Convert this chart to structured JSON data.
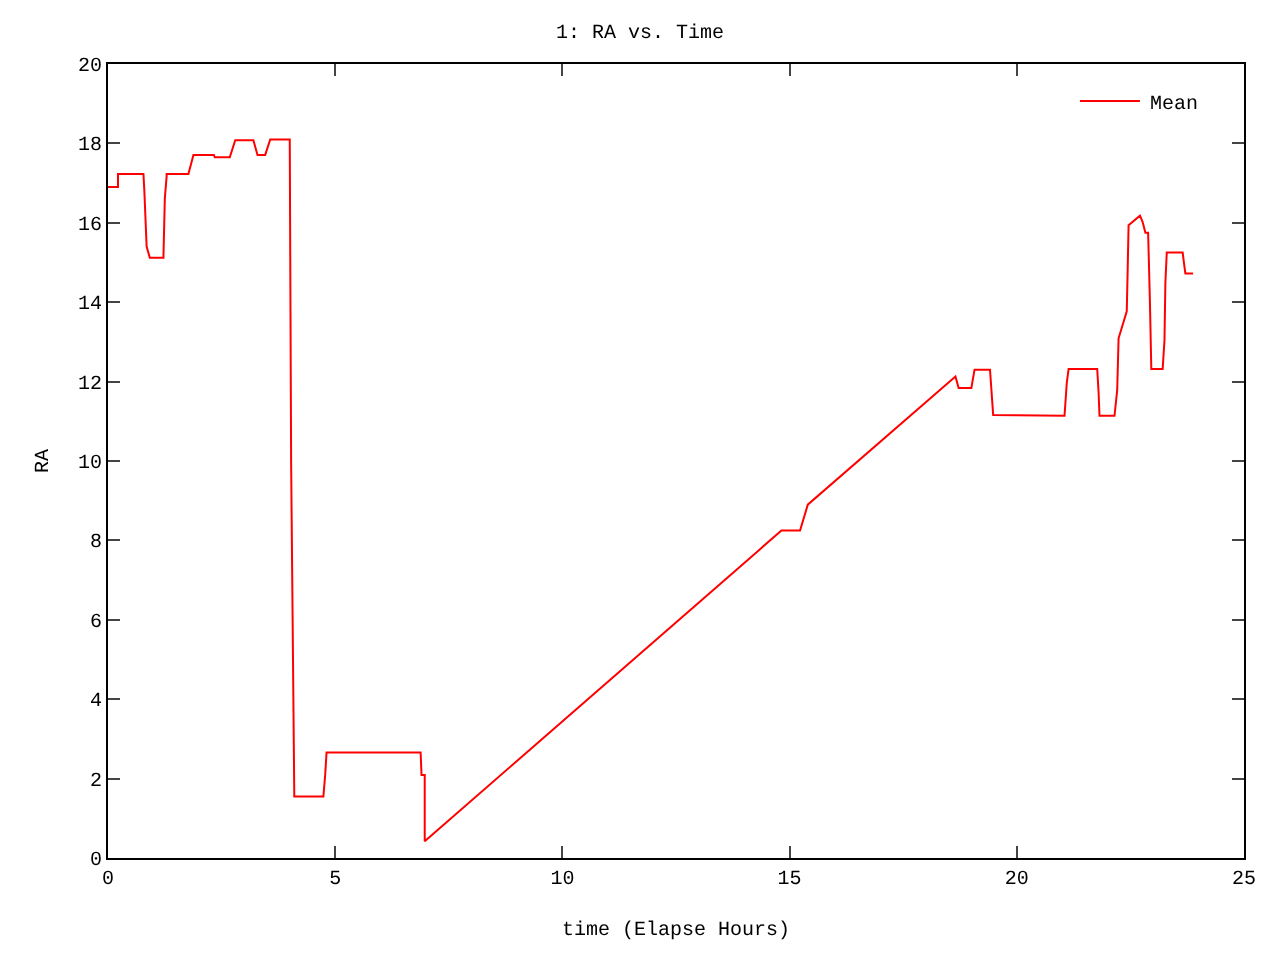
{
  "chart_data": {
    "type": "line",
    "title": "1: RA vs. Time",
    "xlabel": "time (Elapse Hours)",
    "ylabel": "RA",
    "xlim": [
      0,
      25
    ],
    "xticks": [
      0,
      5,
      10,
      15,
      20,
      25
    ],
    "ylim": [
      0,
      20
    ],
    "yticks": [
      0,
      2,
      4,
      6,
      8,
      10,
      12,
      14,
      16,
      18,
      20
    ],
    "legend": "top right",
    "marker": "none",
    "line_style": "solid",
    "series": [
      {
        "name": "Mean",
        "color": "#ff0000",
        "x": [
          0,
          0.22,
          0.22,
          0.78,
          0.8,
          0.85,
          0.92,
          1.22,
          1.25,
          1.29,
          1.29,
          1.77,
          1.88,
          2.33,
          2.35,
          2.68,
          2.8,
          3.2,
          3.29,
          3.46,
          3.57,
          4.0,
          4.03,
          4.1,
          4.74,
          4.78,
          4.81,
          6.88,
          6.9,
          6.97,
          6.97,
          14.35,
          14.82,
          15.23,
          15.4,
          18.65,
          18.72,
          19.0,
          19.07,
          19.41,
          19.48,
          21.05,
          21.1,
          21.14,
          21.77,
          21.8,
          21.82,
          22.15,
          22.21,
          22.24,
          22.42,
          22.44,
          22.46,
          22.71,
          22.77,
          22.83,
          22.89,
          22.93,
          22.96,
          23.21,
          23.25,
          23.27,
          23.3,
          23.65,
          23.68,
          23.71,
          23.88
        ],
        "values": [
          16.9,
          16.9,
          17.23,
          17.23,
          16.8,
          15.4,
          15.12,
          15.12,
          16.6,
          17.17,
          17.23,
          17.23,
          17.71,
          17.71,
          17.65,
          17.65,
          18.08,
          18.08,
          17.71,
          17.71,
          18.1,
          18.1,
          10,
          1.55,
          1.55,
          2.1,
          2.66,
          2.66,
          2.09,
          2.09,
          0.42,
          7.78,
          8.25,
          8.25,
          8.9,
          12.13,
          11.84,
          11.84,
          12.3,
          12.3,
          11.16,
          11.14,
          11.97,
          12.32,
          12.32,
          11.72,
          11.14,
          11.14,
          11.79,
          13.09,
          13.77,
          14.82,
          15.94,
          16.18,
          16.02,
          15.75,
          15.75,
          14.0,
          12.32,
          12.32,
          13.04,
          14.49,
          15.25,
          15.25,
          14.98,
          14.72,
          14.72
        ]
      }
    ]
  }
}
